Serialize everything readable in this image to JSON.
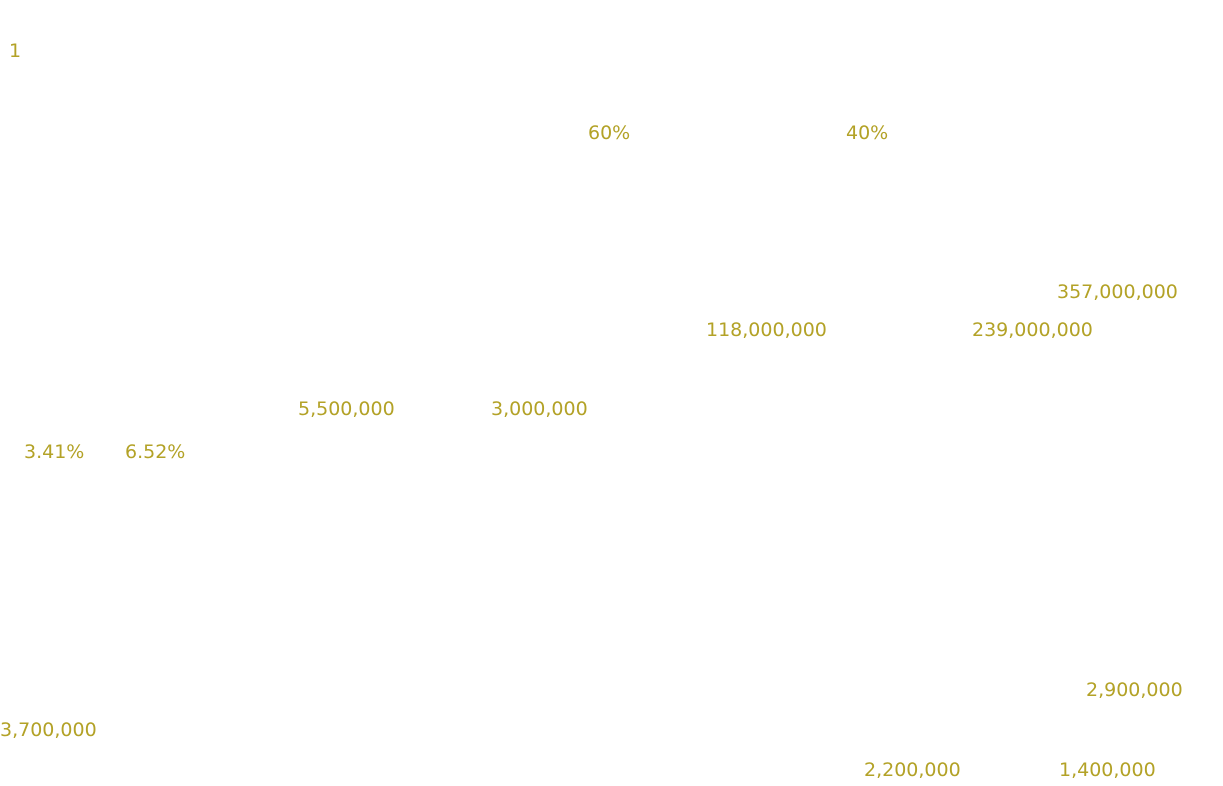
{
  "theme": {
    "background": "#ffffff",
    "text_color": "#b3a227"
  },
  "labels": {
    "page_number": "1",
    "share_a": "60%",
    "share_b": "40%",
    "total_big": "357,000,000",
    "part_a_big": "118,000,000",
    "part_b_big": "239,000,000",
    "mid_a": "5,500,000",
    "mid_b": "3,000,000",
    "rate_a": "3.41%",
    "rate_b": "6.52%",
    "left_value": "3,700,000",
    "right_total": "2,900,000",
    "right_a": "2,200,000",
    "right_b": "1,400,000"
  }
}
